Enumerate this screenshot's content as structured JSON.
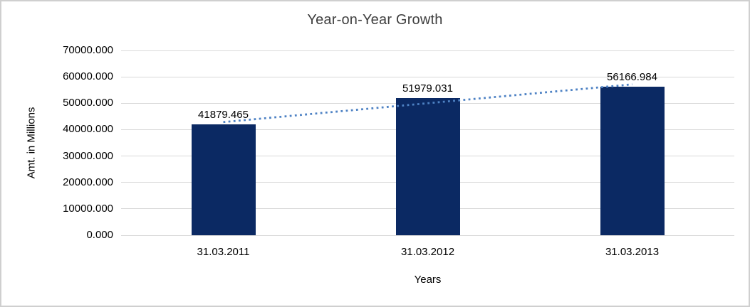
{
  "chart_data": {
    "type": "bar",
    "title": "Year-on-Year Growth",
    "xlabel": "Years",
    "ylabel": "Amt. in Millions",
    "categories": [
      "31.03.2011",
      "31.03.2012",
      "31.03.2013"
    ],
    "values": [
      41879.465,
      51979.031,
      56166.984
    ],
    "data_labels": [
      "41879.465",
      "51979.031",
      "56166.984"
    ],
    "ylim": [
      0,
      70000
    ],
    "yticks": [
      {
        "value": 0,
        "label": "0.000"
      },
      {
        "value": 10000,
        "label": "10000.000"
      },
      {
        "value": 20000,
        "label": "20000.000"
      },
      {
        "value": 30000,
        "label": "30000.000"
      },
      {
        "value": 40000,
        "label": "40000.000"
      },
      {
        "value": 50000,
        "label": "50000.000"
      },
      {
        "value": 60000,
        "label": "60000.000"
      },
      {
        "value": 70000,
        "label": "70000.000"
      }
    ],
    "grid": true,
    "legend": "none",
    "trendline": {
      "type": "linear",
      "style": "dotted",
      "endpoint_values": [
        42864.7,
        57152.3
      ]
    },
    "colors": {
      "bar": "#0B2963",
      "trendline": "#4E82C4",
      "gridline": "#D9D9D9",
      "text": "#000000",
      "title_text": "#3F3F3F",
      "frame_border": "#CFCFCF",
      "background": "#FFFFFF"
    }
  }
}
